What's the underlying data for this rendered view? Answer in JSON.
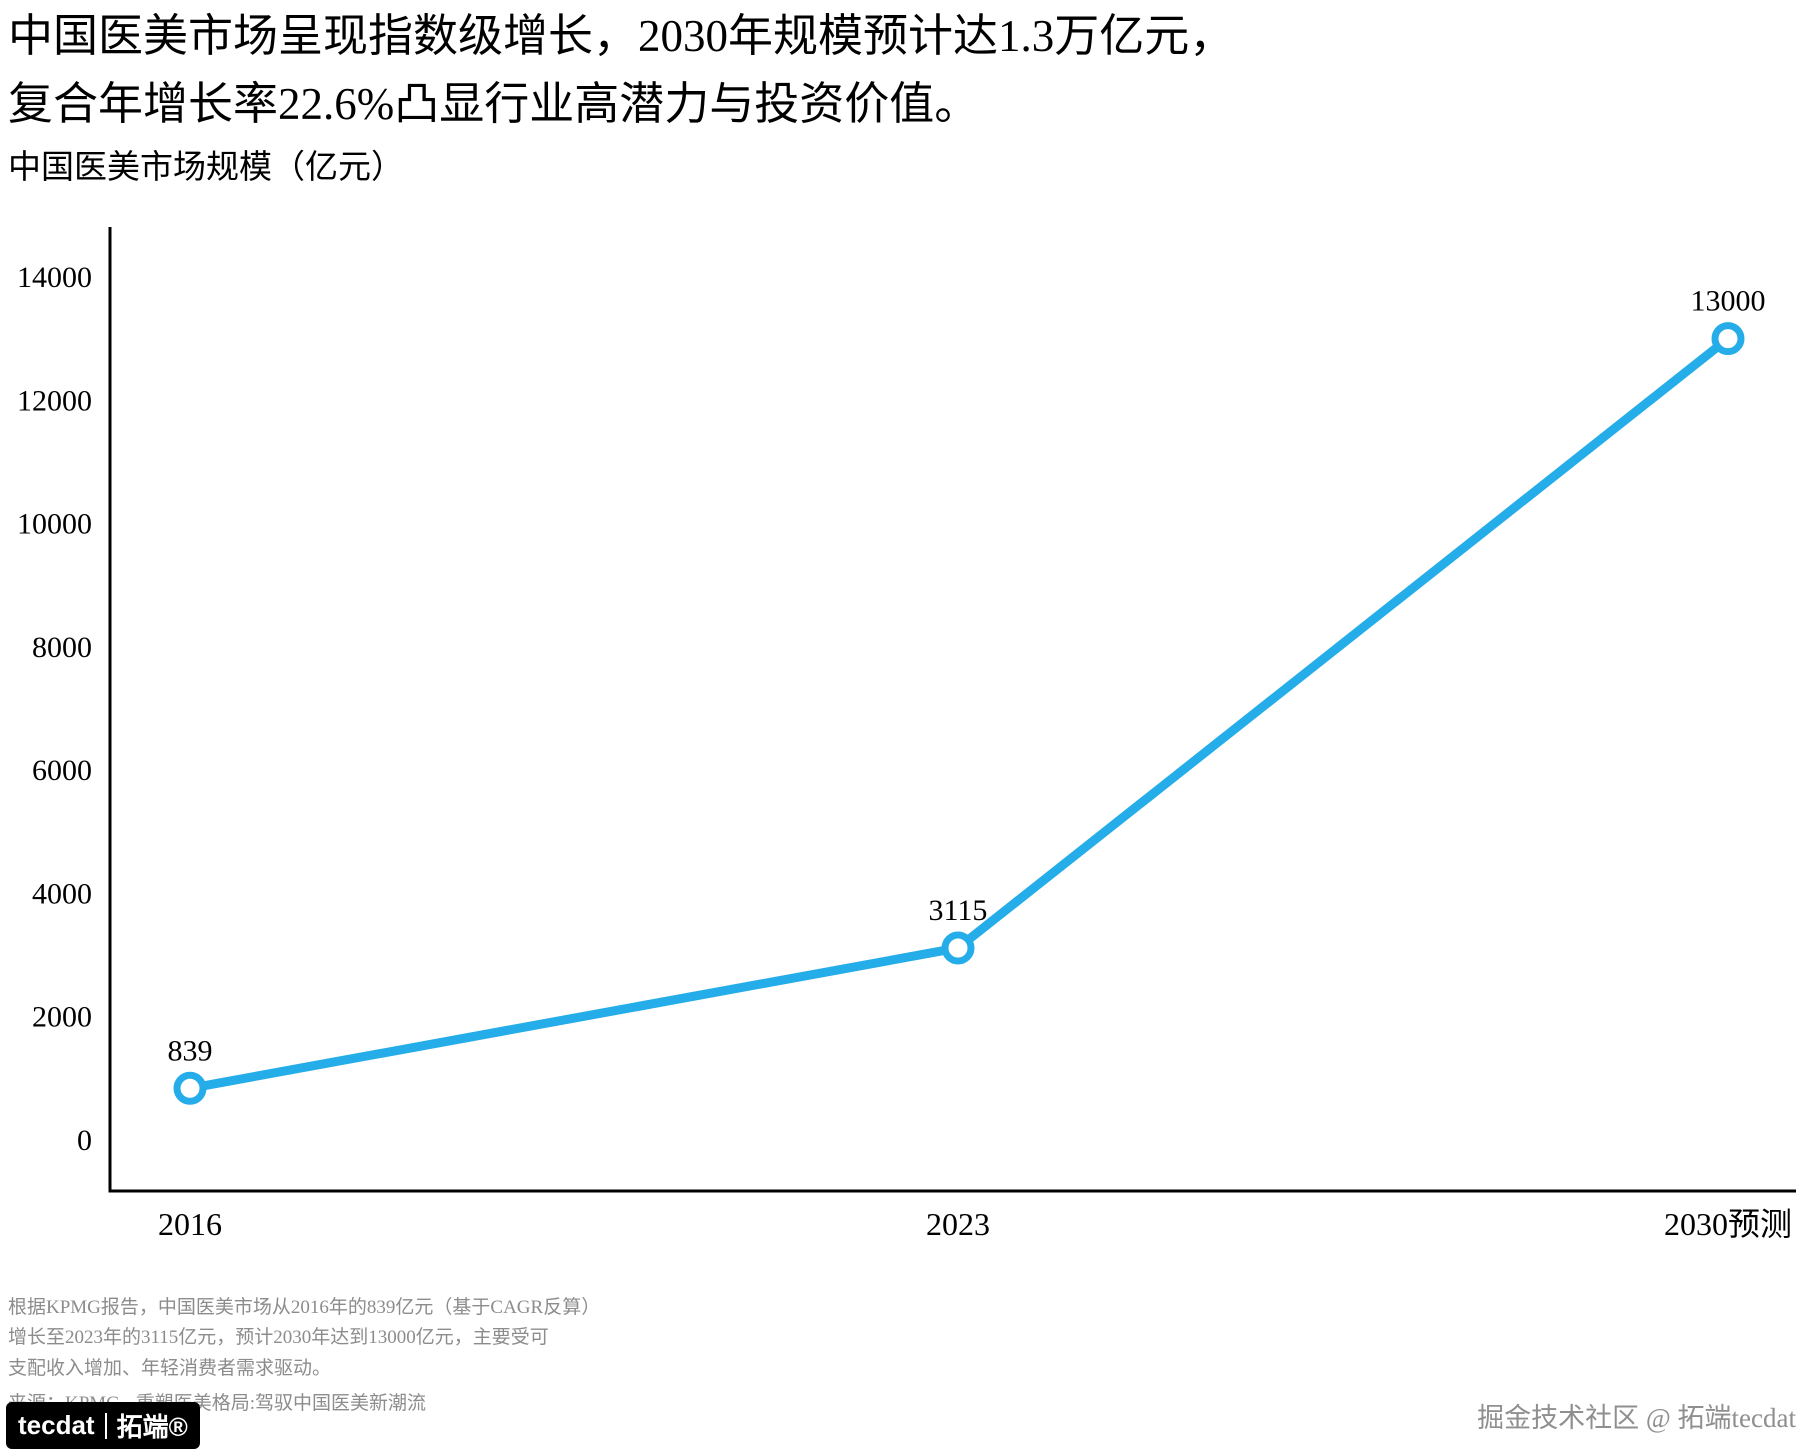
{
  "header": {
    "title_line1": "中国医美市场呈现指数级增长，2030年规模预计达1.3万亿元，",
    "title_line2": "复合年增长率22.6%凸显行业高潜力与投资价值。",
    "subtitle": "中国医美市场规模（亿元）"
  },
  "chart_data": {
    "type": "line",
    "title": "中国医美市场规模（亿元）",
    "categories": [
      "2016",
      "2023",
      "2030预测"
    ],
    "values": [
      839,
      3115,
      13000
    ],
    "point_labels": [
      "839",
      "3115",
      "13000"
    ],
    "xlabel": "",
    "ylabel": "",
    "ylim": [
      0,
      14000
    ],
    "yticks": [
      0,
      2000,
      4000,
      6000,
      8000,
      10000,
      12000,
      14000
    ],
    "grid": false,
    "legend": "none",
    "line_color": "#25ade9",
    "marker": "open-circle",
    "axis_color": "#000000"
  },
  "footer": {
    "notes": [
      "根据KPMG报告，中国医美市场从2016年的839亿元（基于CAGR反算）",
      "增长至2023年的3115亿元，预计2030年达到13000亿元，主要受可",
      "支配收入增加、年轻消费者需求驱动。"
    ],
    "source": "来源：KPMG - 重塑医美格局:驾驭中国医美新潮流",
    "logo": {
      "name": "tecdat",
      "brand": "拓端®"
    },
    "community": "掘金技术社区 @ 拓端tecdat"
  }
}
